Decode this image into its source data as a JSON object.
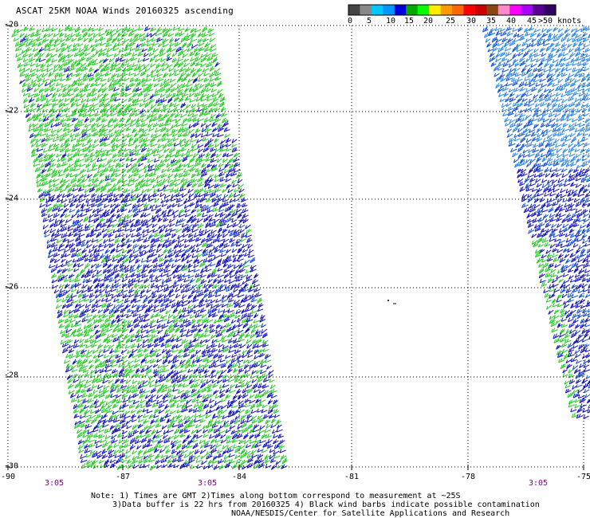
{
  "title": "ASCAT 25KM NOAA Winds 20160325 ascending",
  "legend": {
    "colors": [
      "#444444",
      "#888888",
      "#00c8ff",
      "#0096ff",
      "#0000dc",
      "#00aa00",
      "#00ff00",
      "#ffee00",
      "#ff9900",
      "#ff6600",
      "#ff0000",
      "#cc0000",
      "#8b4513",
      "#ff88cc",
      "#ff00ff",
      "#aa00ff",
      "#5a0099",
      "#330066"
    ],
    "ticks": [
      "0",
      "5",
      "10",
      "15",
      "20",
      "25",
      "30",
      "35",
      "40",
      "45"
    ],
    "unit": ">50 knots"
  },
  "axes": {
    "lat_labels": [
      "-20",
      "-22",
      "-24",
      "-26",
      "-28",
      "-30"
    ],
    "lon_labels": [
      "-90",
      "-87",
      "-84",
      "-81",
      "-78",
      "-75"
    ]
  },
  "times": [
    "3:05",
    "3:05",
    "3:05"
  ],
  "note": {
    "line1": "Note: 1) Times are GMT 2)Times along bottom correspond to measurement at ~25S",
    "line2": "3)Data buffer is 22 hrs from 20160325 4) Black wind barbs indicate possible contamination",
    "line3": "NOAA/NESDIS/Center for Satellite Applications and Research"
  },
  "colors": {
    "green": "#22cc22",
    "blue": "#1010c0",
    "mid_blue": "#1050d8",
    "light_blue": "#2a86e8",
    "grid": "#000000"
  }
}
